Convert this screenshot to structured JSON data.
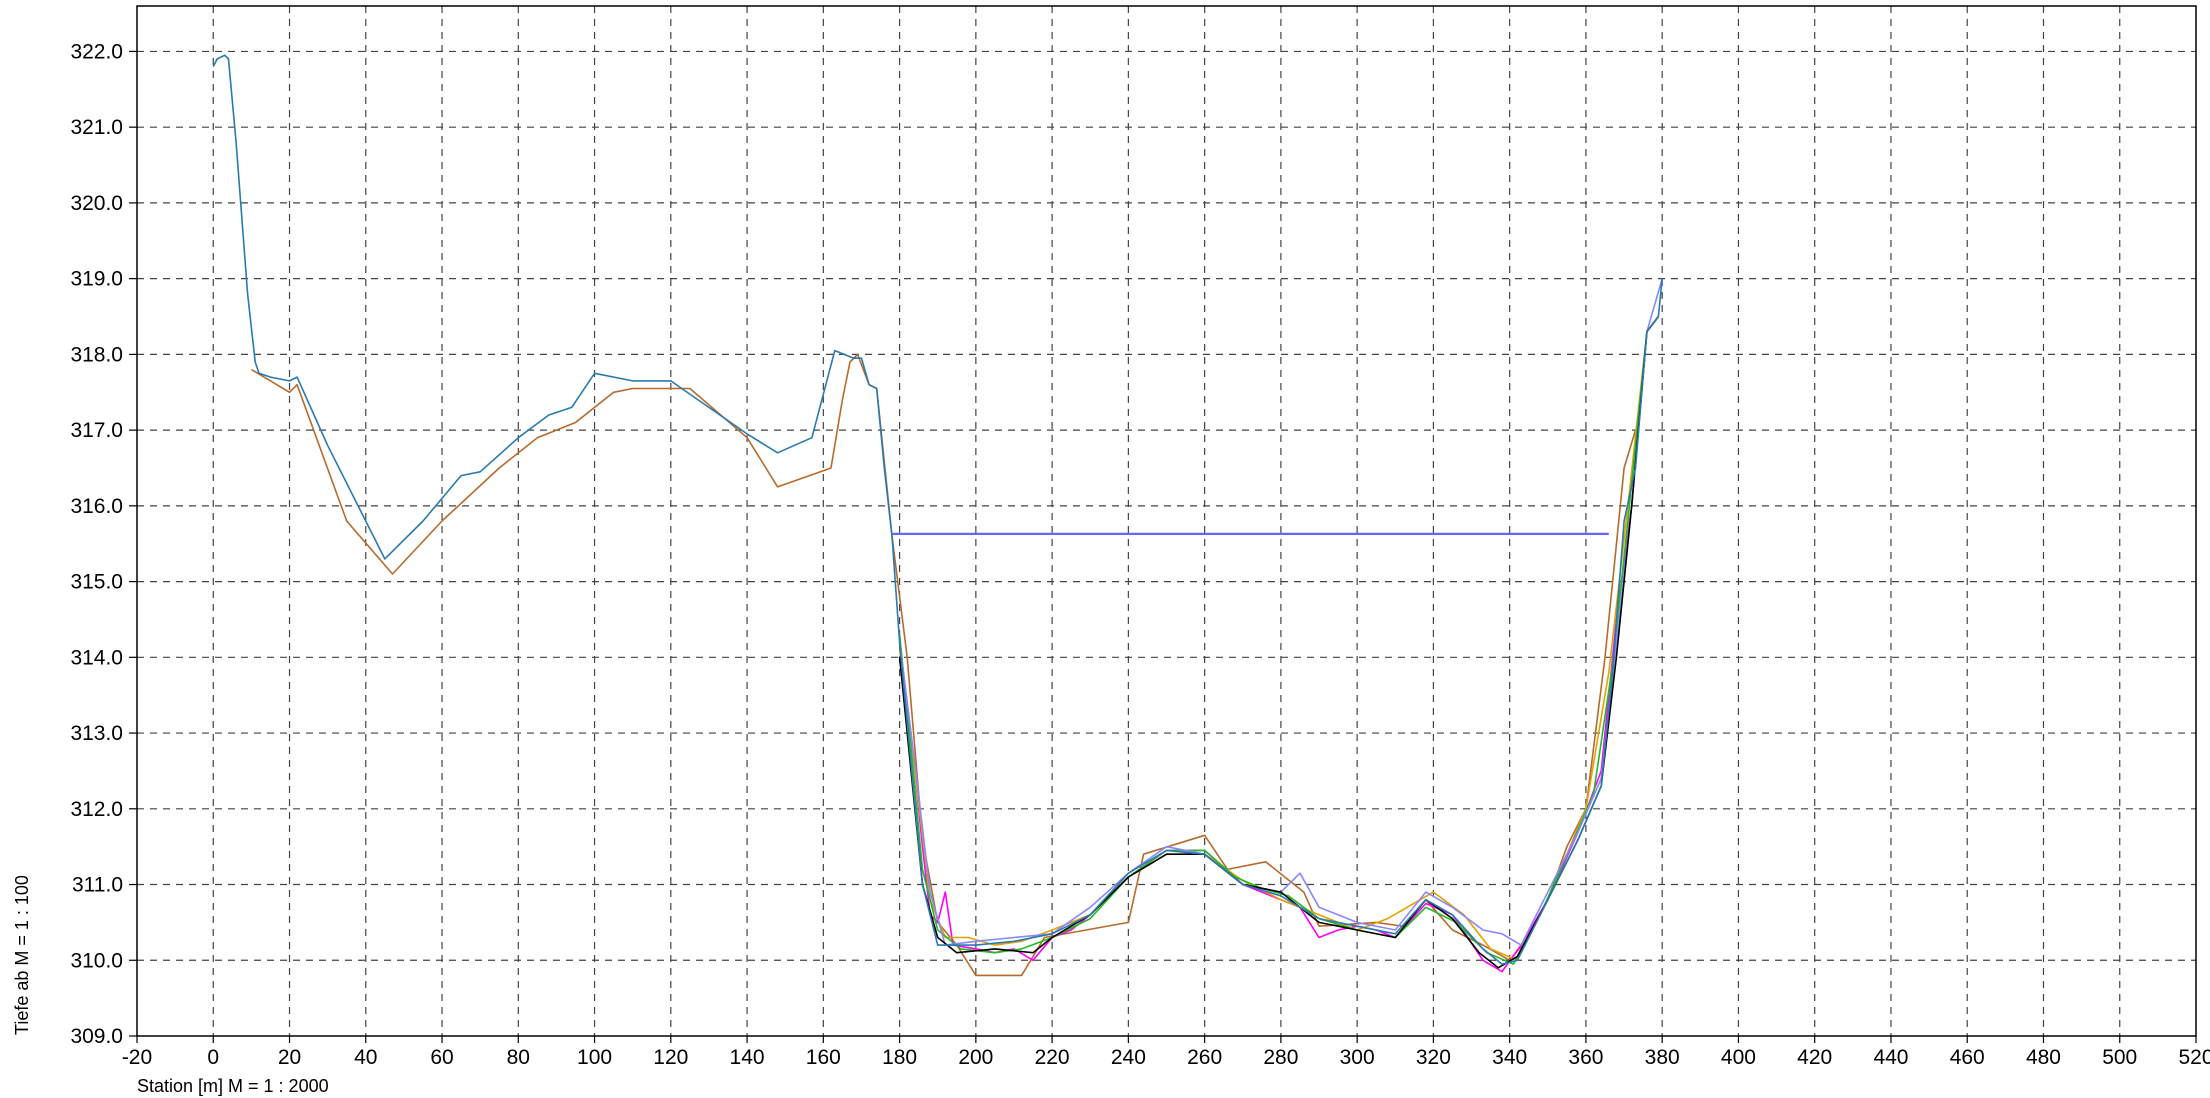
{
  "chart_data": {
    "type": "line",
    "title": "",
    "xlabel": "Station [m]  M = 1 :  2000",
    "ylabel": "Tiefe ab    M = 1 : 100",
    "xlim": [
      -20,
      520
    ],
    "ylim": [
      309.0,
      322.6
    ],
    "x_ticks": [
      -20,
      0,
      20,
      40,
      60,
      80,
      100,
      120,
      140,
      160,
      180,
      200,
      220,
      240,
      260,
      280,
      300,
      320,
      340,
      360,
      380,
      400,
      420,
      440,
      460,
      480,
      500,
      520
    ],
    "y_ticks": [
      "309.0",
      "310.0",
      "311.0",
      "312.0",
      "313.0",
      "314.0",
      "315.0",
      "316.0",
      "317.0",
      "318.0",
      "319.0",
      "320.0",
      "321.0",
      "322.0"
    ],
    "grid": true,
    "grid_style": "dashed",
    "legend": "none",
    "series": [
      {
        "color": "#b86a2a",
        "points": [
          [
            10,
            317.8
          ],
          [
            20,
            317.5
          ],
          [
            22,
            317.6
          ],
          [
            35,
            315.8
          ],
          [
            47,
            315.1
          ],
          [
            60,
            315.8
          ],
          [
            75,
            316.5
          ],
          [
            85,
            316.9
          ],
          [
            95,
            317.1
          ],
          [
            105,
            317.5
          ],
          [
            110,
            317.55
          ],
          [
            125,
            317.55
          ],
          [
            140,
            316.9
          ],
          [
            148,
            316.25
          ],
          [
            162,
            316.5
          ],
          [
            165,
            317.4
          ],
          [
            167,
            317.9
          ],
          [
            169,
            318.0
          ],
          [
            172,
            317.6
          ],
          [
            174,
            317.55
          ],
          [
            178,
            315.6
          ],
          [
            182,
            314.0
          ],
          [
            186,
            311.6
          ],
          [
            190,
            310.5
          ],
          [
            195,
            310.2
          ],
          [
            200,
            309.8
          ],
          [
            212,
            309.8
          ],
          [
            218,
            310.3
          ],
          [
            240,
            310.5
          ],
          [
            244,
            311.4
          ],
          [
            260,
            311.65
          ],
          [
            266,
            311.2
          ],
          [
            276,
            311.3
          ],
          [
            286,
            310.9
          ],
          [
            290,
            310.45
          ],
          [
            305,
            310.5
          ],
          [
            312,
            310.45
          ],
          [
            318,
            310.8
          ],
          [
            325,
            310.4
          ],
          [
            333,
            310.2
          ],
          [
            340,
            310.0
          ],
          [
            345,
            310.3
          ],
          [
            350,
            310.8
          ],
          [
            355,
            311.5
          ],
          [
            360,
            312.0
          ],
          [
            365,
            314.0
          ],
          [
            370,
            316.5
          ],
          [
            373,
            317.0
          ]
        ]
      },
      {
        "color": "#ff00ff",
        "points": [
          [
            180,
            314.2
          ],
          [
            183,
            313.0
          ],
          [
            186,
            311.5
          ],
          [
            188,
            310.6
          ],
          [
            190,
            310.5
          ],
          [
            192,
            310.9
          ],
          [
            194,
            310.2
          ],
          [
            200,
            310.15
          ],
          [
            205,
            310.1
          ],
          [
            210,
            310.15
          ],
          [
            215,
            310.0
          ],
          [
            220,
            310.3
          ],
          [
            225,
            310.4
          ],
          [
            230,
            310.6
          ],
          [
            240,
            311.1
          ],
          [
            250,
            311.45
          ],
          [
            260,
            311.45
          ],
          [
            270,
            311.0
          ],
          [
            280,
            310.8
          ],
          [
            285,
            310.7
          ],
          [
            290,
            310.3
          ],
          [
            295,
            310.4
          ],
          [
            300,
            310.45
          ],
          [
            305,
            310.4
          ],
          [
            310,
            310.3
          ],
          [
            318,
            310.75
          ],
          [
            325,
            310.6
          ],
          [
            333,
            310.0
          ],
          [
            338,
            309.85
          ],
          [
            343,
            310.2
          ],
          [
            350,
            310.8
          ],
          [
            358,
            311.7
          ],
          [
            364,
            312.5
          ],
          [
            368,
            314.5
          ],
          [
            372,
            316.0
          ],
          [
            376,
            318.3
          ],
          [
            379,
            318.5
          ]
        ]
      },
      {
        "color": "#e8a000",
        "points": [
          [
            180,
            314.1
          ],
          [
            184,
            312.5
          ],
          [
            188,
            310.8
          ],
          [
            192,
            310.3
          ],
          [
            198,
            310.3
          ],
          [
            205,
            310.2
          ],
          [
            212,
            310.25
          ],
          [
            220,
            310.4
          ],
          [
            230,
            310.6
          ],
          [
            240,
            311.1
          ],
          [
            250,
            311.4
          ],
          [
            260,
            311.4
          ],
          [
            270,
            311.05
          ],
          [
            280,
            310.8
          ],
          [
            290,
            310.6
          ],
          [
            300,
            310.4
          ],
          [
            308,
            310.55
          ],
          [
            320,
            310.9
          ],
          [
            328,
            310.6
          ],
          [
            335,
            310.15
          ],
          [
            342,
            310.0
          ],
          [
            350,
            310.8
          ],
          [
            360,
            312.0
          ],
          [
            366,
            313.8
          ],
          [
            371,
            316.0
          ],
          [
            376,
            318.3
          ],
          [
            379,
            318.5
          ]
        ]
      },
      {
        "color": "#22bb22",
        "points": [
          [
            180,
            314.3
          ],
          [
            183,
            312.8
          ],
          [
            186,
            311.2
          ],
          [
            190,
            310.4
          ],
          [
            196,
            310.15
          ],
          [
            205,
            310.1
          ],
          [
            212,
            310.15
          ],
          [
            220,
            310.3
          ],
          [
            230,
            310.55
          ],
          [
            240,
            311.1
          ],
          [
            250,
            311.45
          ],
          [
            260,
            311.45
          ],
          [
            268,
            311.1
          ],
          [
            275,
            310.95
          ],
          [
            282,
            310.85
          ],
          [
            290,
            310.55
          ],
          [
            300,
            310.4
          ],
          [
            310,
            310.3
          ],
          [
            318,
            310.7
          ],
          [
            326,
            310.5
          ],
          [
            334,
            310.1
          ],
          [
            341,
            309.95
          ],
          [
            348,
            310.6
          ],
          [
            356,
            311.5
          ],
          [
            362,
            312.2
          ],
          [
            367,
            313.9
          ],
          [
            371,
            315.8
          ],
          [
            376,
            318.3
          ],
          [
            379,
            318.5
          ]
        ]
      },
      {
        "color": "#8888ff",
        "points": [
          [
            180,
            314.2
          ],
          [
            184,
            312.6
          ],
          [
            188,
            310.9
          ],
          [
            192,
            310.2
          ],
          [
            200,
            310.25
          ],
          [
            210,
            310.3
          ],
          [
            220,
            310.35
          ],
          [
            230,
            310.7
          ],
          [
            240,
            311.15
          ],
          [
            250,
            311.5
          ],
          [
            260,
            311.4
          ],
          [
            270,
            311.0
          ],
          [
            280,
            310.9
          ],
          [
            285,
            311.15
          ],
          [
            290,
            310.7
          ],
          [
            300,
            310.5
          ],
          [
            310,
            310.4
          ],
          [
            318,
            310.9
          ],
          [
            325,
            310.7
          ],
          [
            333,
            310.4
          ],
          [
            338,
            310.35
          ],
          [
            343,
            310.2
          ],
          [
            350,
            310.9
          ],
          [
            358,
            311.7
          ],
          [
            364,
            312.4
          ],
          [
            368,
            314.2
          ],
          [
            372,
            316.0
          ],
          [
            376,
            318.3
          ],
          [
            380,
            319.0
          ]
        ]
      },
      {
        "color": "#000000",
        "points": [
          [
            180,
            314.0
          ],
          [
            183,
            312.5
          ],
          [
            186,
            311.0
          ],
          [
            190,
            310.3
          ],
          [
            195,
            310.1
          ],
          [
            205,
            310.15
          ],
          [
            215,
            310.1
          ],
          [
            220,
            310.3
          ],
          [
            230,
            310.6
          ],
          [
            240,
            311.1
          ],
          [
            250,
            311.4
          ],
          [
            260,
            311.4
          ],
          [
            270,
            311.0
          ],
          [
            280,
            310.9
          ],
          [
            290,
            310.5
          ],
          [
            300,
            310.4
          ],
          [
            310,
            310.3
          ],
          [
            318,
            310.8
          ],
          [
            325,
            310.55
          ],
          [
            332,
            310.1
          ],
          [
            337,
            309.9
          ],
          [
            342,
            310.05
          ],
          [
            350,
            310.8
          ],
          [
            358,
            311.6
          ],
          [
            364,
            312.3
          ],
          [
            368,
            314.0
          ],
          [
            372,
            316.0
          ],
          [
            376,
            318.3
          ],
          [
            379,
            318.5
          ]
        ]
      },
      {
        "color": "#2a7ab0",
        "points": [
          [
            0,
            321.8
          ],
          [
            1,
            321.9
          ],
          [
            3,
            321.95
          ],
          [
            4,
            321.9
          ],
          [
            6,
            320.8
          ],
          [
            9,
            318.8
          ],
          [
            11,
            317.9
          ],
          [
            12,
            317.75
          ],
          [
            15,
            317.7
          ],
          [
            20,
            317.65
          ],
          [
            22,
            317.7
          ],
          [
            30,
            316.8
          ],
          [
            45,
            315.3
          ],
          [
            55,
            315.8
          ],
          [
            65,
            316.4
          ],
          [
            70,
            316.45
          ],
          [
            80,
            316.9
          ],
          [
            88,
            317.2
          ],
          [
            94,
            317.3
          ],
          [
            100,
            317.75
          ],
          [
            110,
            317.65
          ],
          [
            120,
            317.65
          ],
          [
            130,
            317.3
          ],
          [
            140,
            316.95
          ],
          [
            148,
            316.7
          ],
          [
            157,
            316.9
          ],
          [
            163,
            318.05
          ],
          [
            168,
            317.95
          ],
          [
            170,
            317.95
          ],
          [
            172,
            317.6
          ],
          [
            174,
            317.55
          ],
          [
            176,
            316.5
          ],
          [
            178,
            315.6
          ],
          [
            180,
            314.2
          ],
          [
            183,
            312.6
          ],
          [
            186,
            311.0
          ],
          [
            190,
            310.2
          ],
          [
            200,
            310.2
          ],
          [
            210,
            310.25
          ],
          [
            220,
            310.35
          ],
          [
            230,
            310.6
          ],
          [
            240,
            311.15
          ],
          [
            250,
            311.45
          ],
          [
            260,
            311.4
          ],
          [
            270,
            311.0
          ],
          [
            280,
            310.85
          ],
          [
            290,
            310.55
          ],
          [
            300,
            310.45
          ],
          [
            310,
            310.35
          ],
          [
            318,
            310.8
          ],
          [
            325,
            310.6
          ],
          [
            333,
            310.15
          ],
          [
            338,
            309.95
          ],
          [
            342,
            310.0
          ],
          [
            350,
            310.8
          ],
          [
            358,
            311.6
          ],
          [
            364,
            312.3
          ],
          [
            367,
            313.8
          ],
          [
            370,
            315.8
          ],
          [
            373,
            316.5
          ],
          [
            376,
            318.3
          ],
          [
            379,
            318.5
          ],
          [
            380,
            319.0
          ]
        ]
      }
    ],
    "water_level": {
      "color": "#6666ff",
      "x": [
        178,
        366
      ],
      "y": 315.63
    }
  }
}
